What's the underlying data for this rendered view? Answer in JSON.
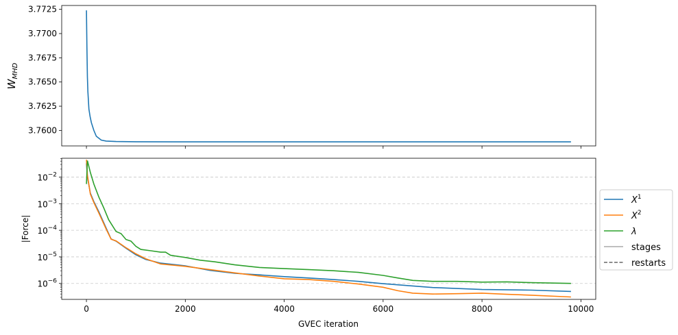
{
  "chart_data": [
    {
      "type": "line",
      "title": "",
      "xlabel": "",
      "ylabel": "W_MHD",
      "ylabel_main": "W",
      "ylabel_sub": "MHD",
      "xlim": [
        -500,
        10300
      ],
      "ylim": [
        3.7584,
        3.7729
      ],
      "xticks": [
        0,
        2000,
        4000,
        6000,
        8000,
        10000
      ],
      "yticks": [
        3.76,
        3.7625,
        3.765,
        3.7675,
        3.77,
        3.7725
      ],
      "ytick_labels": [
        "3.7600",
        "3.7625",
        "3.7650",
        "3.7675",
        "3.7700",
        "3.7725"
      ],
      "grid": false,
      "series": [
        {
          "color": "#1f77b4",
          "x": [
            0,
            10,
            20,
            30,
            50,
            75,
            100,
            150,
            200,
            300,
            400,
            600,
            1000,
            2000,
            4000,
            6000,
            8000,
            9800
          ],
          "y": [
            3.7724,
            3.7685,
            3.7655,
            3.764,
            3.7622,
            3.7614,
            3.7608,
            3.76,
            3.7594,
            3.759,
            3.7589,
            3.75885,
            3.75883,
            3.75882,
            3.75882,
            3.75882,
            3.75882,
            3.75882
          ]
        }
      ]
    },
    {
      "type": "line",
      "title": "",
      "xlabel": "GVEC iteration",
      "ylabel": "|Force|",
      "xlim": [
        -500,
        10300
      ],
      "ylim_log10": [
        -6.6,
        -1.29
      ],
      "yscale": "log",
      "xticks": [
        0,
        2000,
        4000,
        6000,
        8000,
        10000
      ],
      "xtick_labels": [
        "0",
        "2000",
        "4000",
        "6000",
        "8000",
        "10000"
      ],
      "yticks_exp": [
        -6,
        -5,
        -4,
        -3,
        -2
      ],
      "ytick_labels": [
        "10",
        "10",
        "10",
        "10",
        "10"
      ],
      "ytick_exponents": [
        "−6",
        "−5",
        "−4",
        "−3",
        "−2"
      ],
      "grid": "y-dashed",
      "legend_position": "right-outside",
      "legend": [
        {
          "label": "X",
          "sup": "1",
          "color": "#1f77b4"
        },
        {
          "label": "X",
          "sup": "2",
          "color": "#ff7f0e"
        },
        {
          "label": "λ",
          "sup": "",
          "color": "#2ca02c"
        },
        {
          "label": "stages",
          "sup": "",
          "color": "#aaaaaa"
        },
        {
          "label": "restarts",
          "sup": "",
          "color": "#666666"
        }
      ],
      "series": [
        {
          "color": "#1f77b4",
          "x": [
            0,
            20,
            80,
            150,
            250,
            400,
            500,
            600,
            800,
            1000,
            1200,
            1500,
            2000,
            2500,
            3000,
            3500,
            4000,
            4500,
            5000,
            5500,
            6000,
            7000,
            8000,
            9000,
            9800
          ],
          "y": [
            0.033,
            0.01,
            0.0025,
            0.0012,
            0.0005,
            0.00012,
            4.7e-05,
            3.9e-05,
            2.1e-05,
            1.2e-05,
            8e-06,
            5.8e-06,
            4.6e-06,
            3.1e-06,
            2.4e-06,
            2.1e-06,
            1.8e-06,
            1.6e-06,
            1.4e-06,
            1.2e-06,
            9.8e-07,
            7e-07,
            5.9e-07,
            5.6e-07,
            5e-07
          ]
        },
        {
          "color": "#ff7f0e",
          "x": [
            0,
            20,
            80,
            150,
            250,
            400,
            500,
            600,
            800,
            1000,
            1200,
            1500,
            2000,
            2500,
            3000,
            3500,
            4000,
            4500,
            5000,
            5500,
            6000,
            6300,
            6600,
            7000,
            7500,
            8000,
            8500,
            9000,
            9800
          ],
          "y": [
            0.045,
            0.012,
            0.0023,
            0.0011,
            0.00045,
            0.00011,
            4.6e-05,
            4e-05,
            2.2e-05,
            1.3e-05,
            8.5e-06,
            5.4e-06,
            4.4e-06,
            3.3e-06,
            2.5e-06,
            1.9e-06,
            1.5e-06,
            1.4e-06,
            1.2e-06,
            9.5e-07,
            7.2e-07,
            5.3e-07,
            4.3e-07,
            4e-07,
            4.1e-07,
            4.3e-07,
            3.9e-07,
            3.6e-07,
            3.1e-07
          ]
        },
        {
          "color": "#2ca02c",
          "x": [
            0,
            20,
            80,
            150,
            250,
            350,
            450,
            600,
            700,
            800,
            900,
            1000,
            1100,
            1300,
            1500,
            1600,
            1700,
            2000,
            2300,
            2600,
            3000,
            3500,
            4000,
            4500,
            5000,
            5500,
            6000,
            6300,
            6600,
            7000,
            7500,
            8000,
            8500,
            9000,
            9800
          ],
          "y": [
            0.0055,
            0.042,
            0.015,
            0.0055,
            0.0018,
            0.0007,
            0.00025,
            9e-05,
            7.5e-05,
            4.5e-05,
            3.9e-05,
            2.5e-05,
            1.9e-05,
            1.7e-05,
            1.5e-05,
            1.5e-05,
            1.15e-05,
            9.5e-06,
            7.5e-06,
            6.5e-06,
            5e-06,
            4e-06,
            3.6e-06,
            3.3e-06,
            3e-06,
            2.6e-06,
            2e-06,
            1.6e-06,
            1.3e-06,
            1.2e-06,
            1.2e-06,
            1.12e-06,
            1.15e-06,
            1.07e-06,
            1e-06
          ]
        }
      ]
    }
  ]
}
